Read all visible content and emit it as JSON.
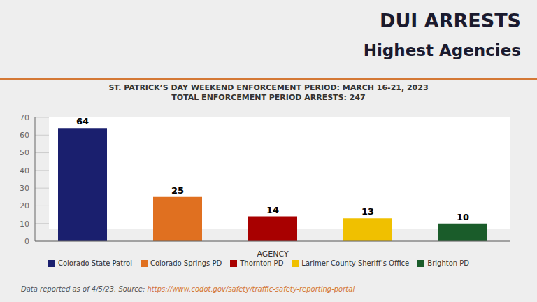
{
  "chart_data": {
    "type": "bar",
    "title": [
      "DUI ARRESTS",
      "Highest Agencies"
    ],
    "subtitle": [
      "ST. PATRICK’S DAY WEEKEND ENFORCEMENT PERIOD: MARCH 16-21, 2023",
      "TOTAL ENFORCEMENT PERIOD ARRESTS: 247"
    ],
    "x_label": "AGENCY",
    "categories": [
      "Colorado State Patrol",
      "Colorado Springs PD",
      "Thornton PD",
      "Larimer County Sheriff’s Office",
      "Brighton PD"
    ],
    "values": [
      64,
      25,
      14,
      13,
      10
    ],
    "colors": [
      "#1a1f6e",
      "#e07020",
      "#a80000",
      "#f0c000",
      "#1a5c2a"
    ],
    "ylim": [
      0,
      70
    ],
    "yticks": [
      0,
      10,
      20,
      30,
      40,
      50,
      60,
      70
    ],
    "grid": true,
    "legend": "bottom",
    "data_labels": true,
    "tick_labels": "y",
    "annotations": [
      "Data reported as of 4/5/23. Source: ",
      "https://www.codot.gov/safety/traffic-safety-reporting-portal"
    ]
  }
}
